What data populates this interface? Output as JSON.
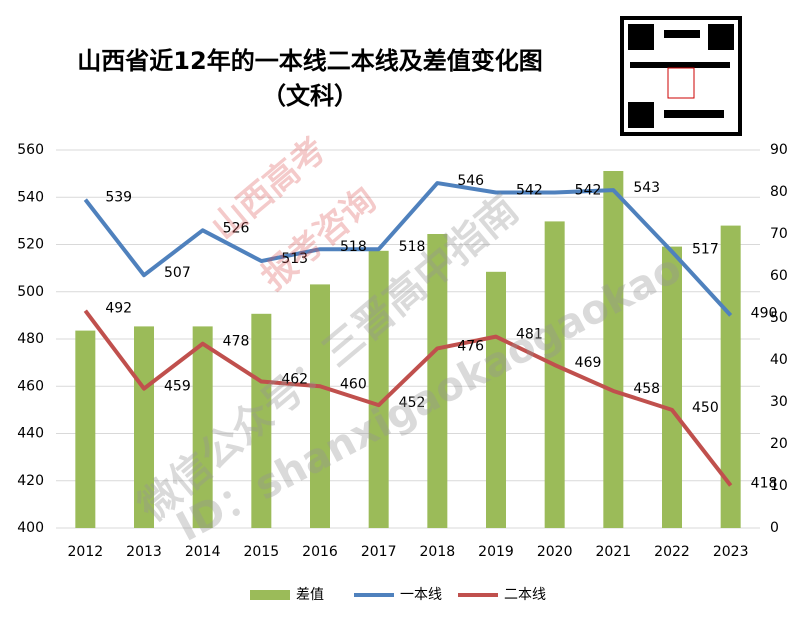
{
  "chart_data": {
    "type": "combo",
    "title": "山西省近12年的一本线二本线及差值变化图",
    "subtitle": "（文科）",
    "categories": [
      "2012",
      "2013",
      "2014",
      "2015",
      "2016",
      "2017",
      "2018",
      "2019",
      "2020",
      "2021",
      "2022",
      "2023"
    ],
    "series": [
      {
        "name": "差值",
        "type": "bar",
        "axis": "y2",
        "color": "#9bbb59",
        "values": [
          47,
          48,
          48,
          51,
          58,
          66,
          70,
          61,
          73,
          85,
          67,
          72
        ]
      },
      {
        "name": "一本线",
        "type": "line",
        "color": "#4f81bd",
        "values": [
          539,
          507,
          526,
          513,
          518,
          518,
          546,
          542,
          542,
          543,
          517,
          490
        ]
      },
      {
        "name": "二本线",
        "type": "line",
        "color": "#c0504d",
        "values": [
          492,
          459,
          478,
          462,
          460,
          452,
          476,
          481,
          469,
          458,
          450,
          418
        ]
      }
    ],
    "ylim": [
      400,
      560
    ],
    "yticks": [
      400,
      420,
      440,
      460,
      480,
      500,
      520,
      540,
      560
    ],
    "y2lim": [
      0,
      90
    ],
    "y2ticks": [
      0,
      10,
      20,
      30,
      40,
      50,
      60,
      70,
      80,
      90
    ],
    "grid": true,
    "legend": "bottom",
    "watermarks": [
      "山西高考",
      "报考咨询",
      "微信公众号：三晋高中指南",
      "ID：shanxigaokaogaokao"
    ]
  }
}
